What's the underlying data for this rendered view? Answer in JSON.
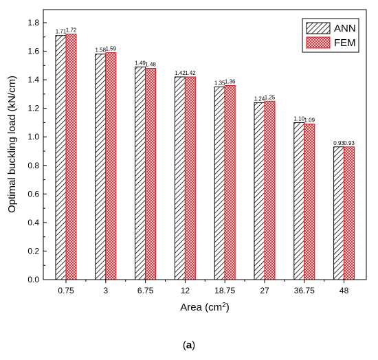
{
  "chart_data": {
    "type": "bar",
    "xlabel": "Area (cm",
    "xlabel_sup": "2",
    "xlabel_end": ")",
    "ylabel": "Optimal buckling load (kN/cm)",
    "ylim": [
      0,
      1.8
    ],
    "yticks": [
      "0.0",
      "0.2",
      "0.4",
      "0.6",
      "0.8",
      "1.0",
      "1.2",
      "1.4",
      "1.6",
      "1.8"
    ],
    "categories": [
      "0.75",
      "3",
      "6.75",
      "12",
      "18.75",
      "27",
      "36.75",
      "48"
    ],
    "series": [
      {
        "name": "ANN",
        "values": [
          1.71,
          1.58,
          1.49,
          1.42,
          1.35,
          1.24,
          1.1,
          0.93
        ],
        "labels": [
          "1.71",
          "1.58",
          "1.49",
          "1.42",
          "1.35",
          "1.24",
          "1.10",
          "0.93"
        ],
        "color": "#000000",
        "pattern": "diagonal-hatch"
      },
      {
        "name": "FEM",
        "values": [
          1.72,
          1.59,
          1.48,
          1.42,
          1.36,
          1.25,
          1.09,
          0.93
        ],
        "labels": [
          "1.72",
          "1.59",
          "1.48",
          "1.42",
          "1.36",
          "1.25",
          "1.09",
          "0.93"
        ],
        "color": "#e8101a",
        "pattern": "crosshatch"
      }
    ],
    "legend_position": "top-right",
    "grid": false
  },
  "caption": {
    "open": "(",
    "letter": "a",
    "close": ")"
  }
}
